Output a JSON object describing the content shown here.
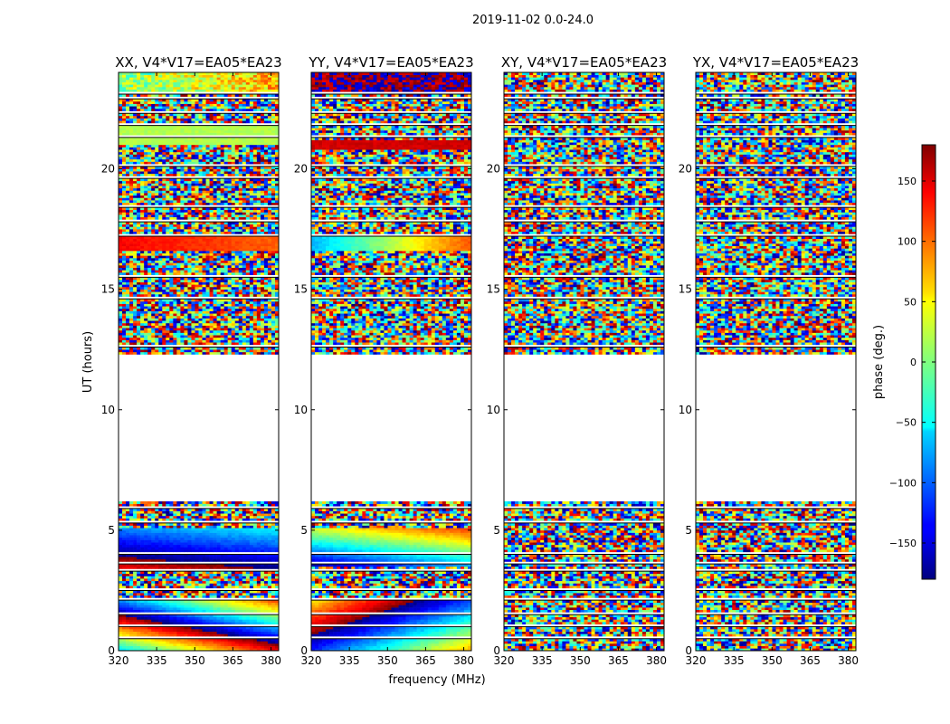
{
  "chart_data": {
    "type": "heatmap",
    "title": "2019-11-02 0.0-24.0",
    "xlabel": "frequency (MHz)",
    "ylabel": "UT (hours)",
    "xlim": [
      320,
      383
    ],
    "ylim": [
      0,
      24
    ],
    "x_ticks": [
      320,
      335,
      350,
      365,
      380
    ],
    "y_ticks": [
      0,
      5,
      10,
      15,
      20
    ],
    "panels": [
      {
        "title": "XX, V4*V17=EA05*EA23",
        "pattern": "xx"
      },
      {
        "title": "YY, V4*V17=EA05*EA23",
        "pattern": "yy"
      },
      {
        "title": "XY, V4*V17=EA05*EA23",
        "pattern": "noise"
      },
      {
        "title": "YX, V4*V17=EA05*EA23",
        "pattern": "noise"
      }
    ],
    "colorbar": {
      "label": "phase (deg.)",
      "range": [
        -180,
        180
      ],
      "ticks": [
        150,
        100,
        50,
        0,
        -50,
        -100,
        -150
      ],
      "colormap": "jet"
    },
    "data_gap_hours": [
      6.1,
      12.2
    ],
    "flagged_rows_hours": [
      0.5,
      1.0,
      1.5,
      2.1,
      2.5,
      3.3,
      3.6,
      4.0,
      5.3,
      5.9,
      12.6,
      14.6,
      15.5,
      17.2,
      17.8,
      18.4,
      19.6,
      20.1,
      21.3,
      21.8,
      22.3,
      22.9,
      23.1
    ]
  }
}
